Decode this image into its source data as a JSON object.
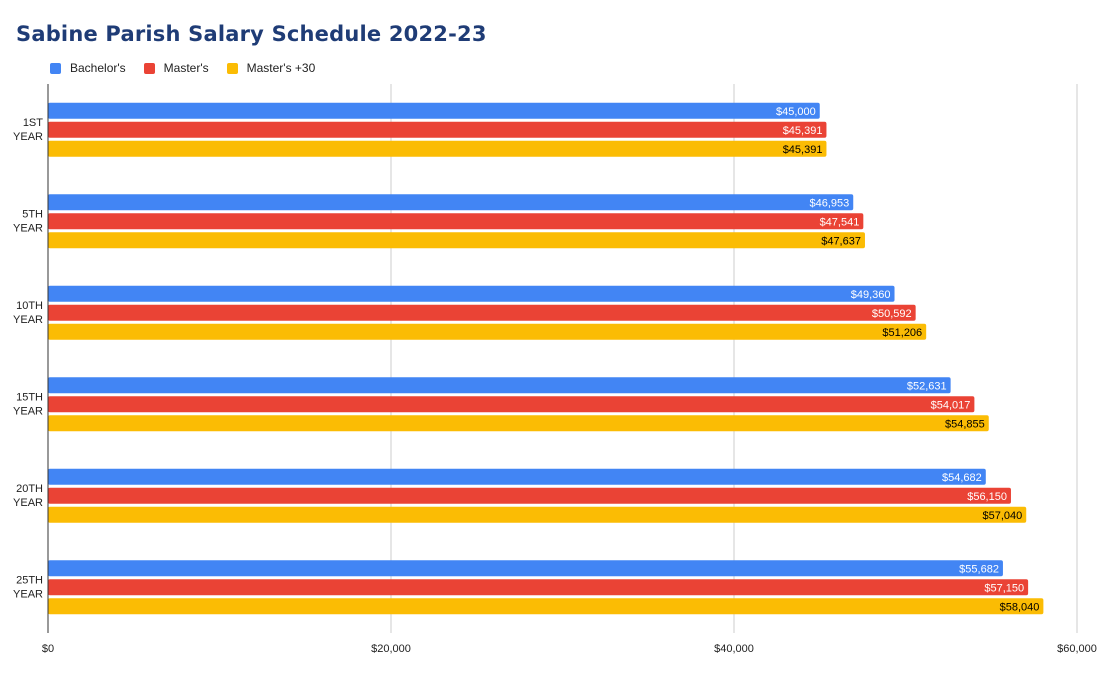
{
  "chart_data": {
    "type": "bar",
    "orientation": "horizontal",
    "title": "Sabine Parish Salary Schedule 2022-23",
    "categories": [
      [
        "1ST",
        "YEAR"
      ],
      [
        "5TH",
        "YEAR"
      ],
      [
        "10TH",
        "YEAR"
      ],
      [
        "15TH",
        "YEAR"
      ],
      [
        "20TH",
        "YEAR"
      ],
      [
        "25TH",
        "YEAR"
      ]
    ],
    "series": [
      {
        "name": "Bachelor's",
        "color": "#4285f4",
        "label_color": "#ffffff",
        "values": [
          45000,
          46953,
          49360,
          52631,
          54682,
          55682
        ],
        "labels": [
          "$45,000",
          "$46,953",
          "$49,360",
          "$52,631",
          "$54,682",
          "$55,682"
        ]
      },
      {
        "name": "Master's",
        "color": "#ea4335",
        "label_color": "#ffffff",
        "values": [
          45391,
          47541,
          50592,
          54017,
          56150,
          57150
        ],
        "labels": [
          "$45,391",
          "$47,541",
          "$50,592",
          "$54,017",
          "$56,150",
          "$57,150"
        ]
      },
      {
        "name": "Master's +30",
        "color": "#fbbc04",
        "label_color": "#000000",
        "values": [
          45391,
          47637,
          51206,
          54855,
          57040,
          58040
        ],
        "labels": [
          "$45,391",
          "$47,637",
          "$51,206",
          "$54,855",
          "$57,040",
          "$58,040"
        ]
      }
    ],
    "xlim": [
      0,
      60000
    ],
    "xticks": [
      0,
      20000,
      40000,
      60000
    ],
    "xtick_labels": [
      "$0",
      "$20,000",
      "$40,000",
      "$60,000"
    ],
    "grid": true,
    "legend_position": "top-left"
  }
}
